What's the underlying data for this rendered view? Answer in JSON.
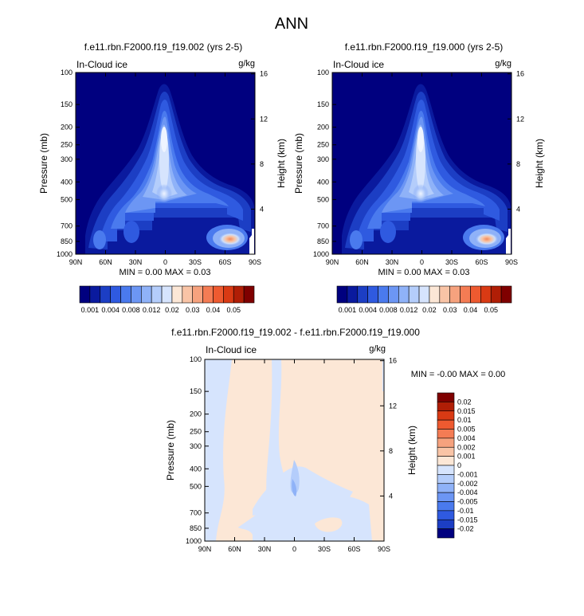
{
  "figure": {
    "title": "ANN",
    "variable_label": "In-Cloud ice",
    "units_label": "g/kg"
  },
  "chart_data": [
    {
      "type": "heatmap",
      "title": "f.e11.rbn.F2000.f19_f19.002 (yrs 2-5)",
      "left_label": "In-Cloud ice",
      "right_label": "g/kg",
      "ylabel": "Pressure (mb)",
      "y2label": "Height (km)",
      "x_ticks": [
        "90N",
        "60N",
        "30N",
        "0",
        "30S",
        "60S",
        "90S"
      ],
      "y_ticks": [
        100,
        150,
        200,
        250,
        300,
        400,
        500,
        700,
        850,
        1000
      ],
      "y2_ticks": [
        4,
        8,
        12,
        16
      ],
      "ylim": [
        1000,
        100
      ],
      "stats": "MIN =   0.00   MAX =   0.03",
      "min": 0.0,
      "max": 0.03,
      "colorbar": {
        "orientation": "horizontal",
        "levels": [
          "0.001",
          "0.004",
          "0.008",
          "0.012",
          "0.02",
          "0.03",
          "0.04",
          "0.05"
        ],
        "colors": [
          "#00007f",
          "#0a1a9e",
          "#1c3ec4",
          "#2f5ae0",
          "#4a7aee",
          "#6c96f4",
          "#8fb2f8",
          "#b4cdfb",
          "#d6e4fd",
          "#fce7d6",
          "#f9c4a6",
          "#f6a27e",
          "#f47c54",
          "#ee5a30",
          "#d93a14",
          "#b01e06",
          "#7f0000"
        ]
      }
    },
    {
      "type": "heatmap",
      "title": "f.e11.rbn.F2000.f19_f19.000 (yrs 2-5)",
      "left_label": "In-Cloud ice",
      "right_label": "g/kg",
      "ylabel": "Pressure (mb)",
      "y2label": "Height (km)",
      "x_ticks": [
        "90N",
        "60N",
        "30N",
        "0",
        "30S",
        "60S",
        "90S"
      ],
      "y_ticks": [
        100,
        150,
        200,
        250,
        300,
        400,
        500,
        700,
        850,
        1000
      ],
      "y2_ticks": [
        4,
        8,
        12,
        16
      ],
      "ylim": [
        1000,
        100
      ],
      "stats": "MIN =   0.00   MAX =   0.03",
      "min": 0.0,
      "max": 0.03,
      "colorbar": {
        "orientation": "horizontal",
        "levels": [
          "0.001",
          "0.004",
          "0.008",
          "0.012",
          "0.02",
          "0.03",
          "0.04",
          "0.05"
        ],
        "colors": [
          "#00007f",
          "#0a1a9e",
          "#1c3ec4",
          "#2f5ae0",
          "#4a7aee",
          "#6c96f4",
          "#8fb2f8",
          "#b4cdfb",
          "#d6e4fd",
          "#fce7d6",
          "#f9c4a6",
          "#f6a27e",
          "#f47c54",
          "#ee5a30",
          "#d93a14",
          "#b01e06",
          "#7f0000"
        ]
      }
    },
    {
      "type": "heatmap",
      "title": "f.e11.rbn.F2000.f19_f19.002 - f.e11.rbn.F2000.f19_f19.000",
      "left_label": "In-Cloud ice",
      "right_label": "g/kg",
      "ylabel": "Pressure (mb)",
      "y2label": "Height (km)",
      "x_ticks": [
        "90N",
        "60N",
        "30N",
        "0",
        "30S",
        "60S",
        "90S"
      ],
      "y_ticks": [
        100,
        150,
        200,
        250,
        300,
        400,
        500,
        700,
        850,
        1000
      ],
      "y2_ticks": [
        4,
        8,
        12,
        16
      ],
      "ylim": [
        1000,
        100
      ],
      "stats": "MIN =  -0.00   MAX =   0.00",
      "min": -0.0,
      "max": 0.0,
      "colorbar": {
        "orientation": "vertical",
        "levels": [
          "0.02",
          "0.015",
          "0.01",
          "0.005",
          "0.004",
          "0.002",
          "0.001",
          "0",
          "-0.001",
          "-0.002",
          "-0.004",
          "-0.005",
          "-0.01",
          "-0.015",
          "-0.02"
        ],
        "colors": [
          "#7f0000",
          "#b01e06",
          "#d93a14",
          "#ee5a30",
          "#f47c54",
          "#f6a27e",
          "#f9c4a6",
          "#fce7d6",
          "#d6e4fd",
          "#b4cdfb",
          "#8fb2f8",
          "#6c96f4",
          "#4a7aee",
          "#2f5ae0",
          "#1c3ec4",
          "#00007f"
        ]
      }
    }
  ]
}
